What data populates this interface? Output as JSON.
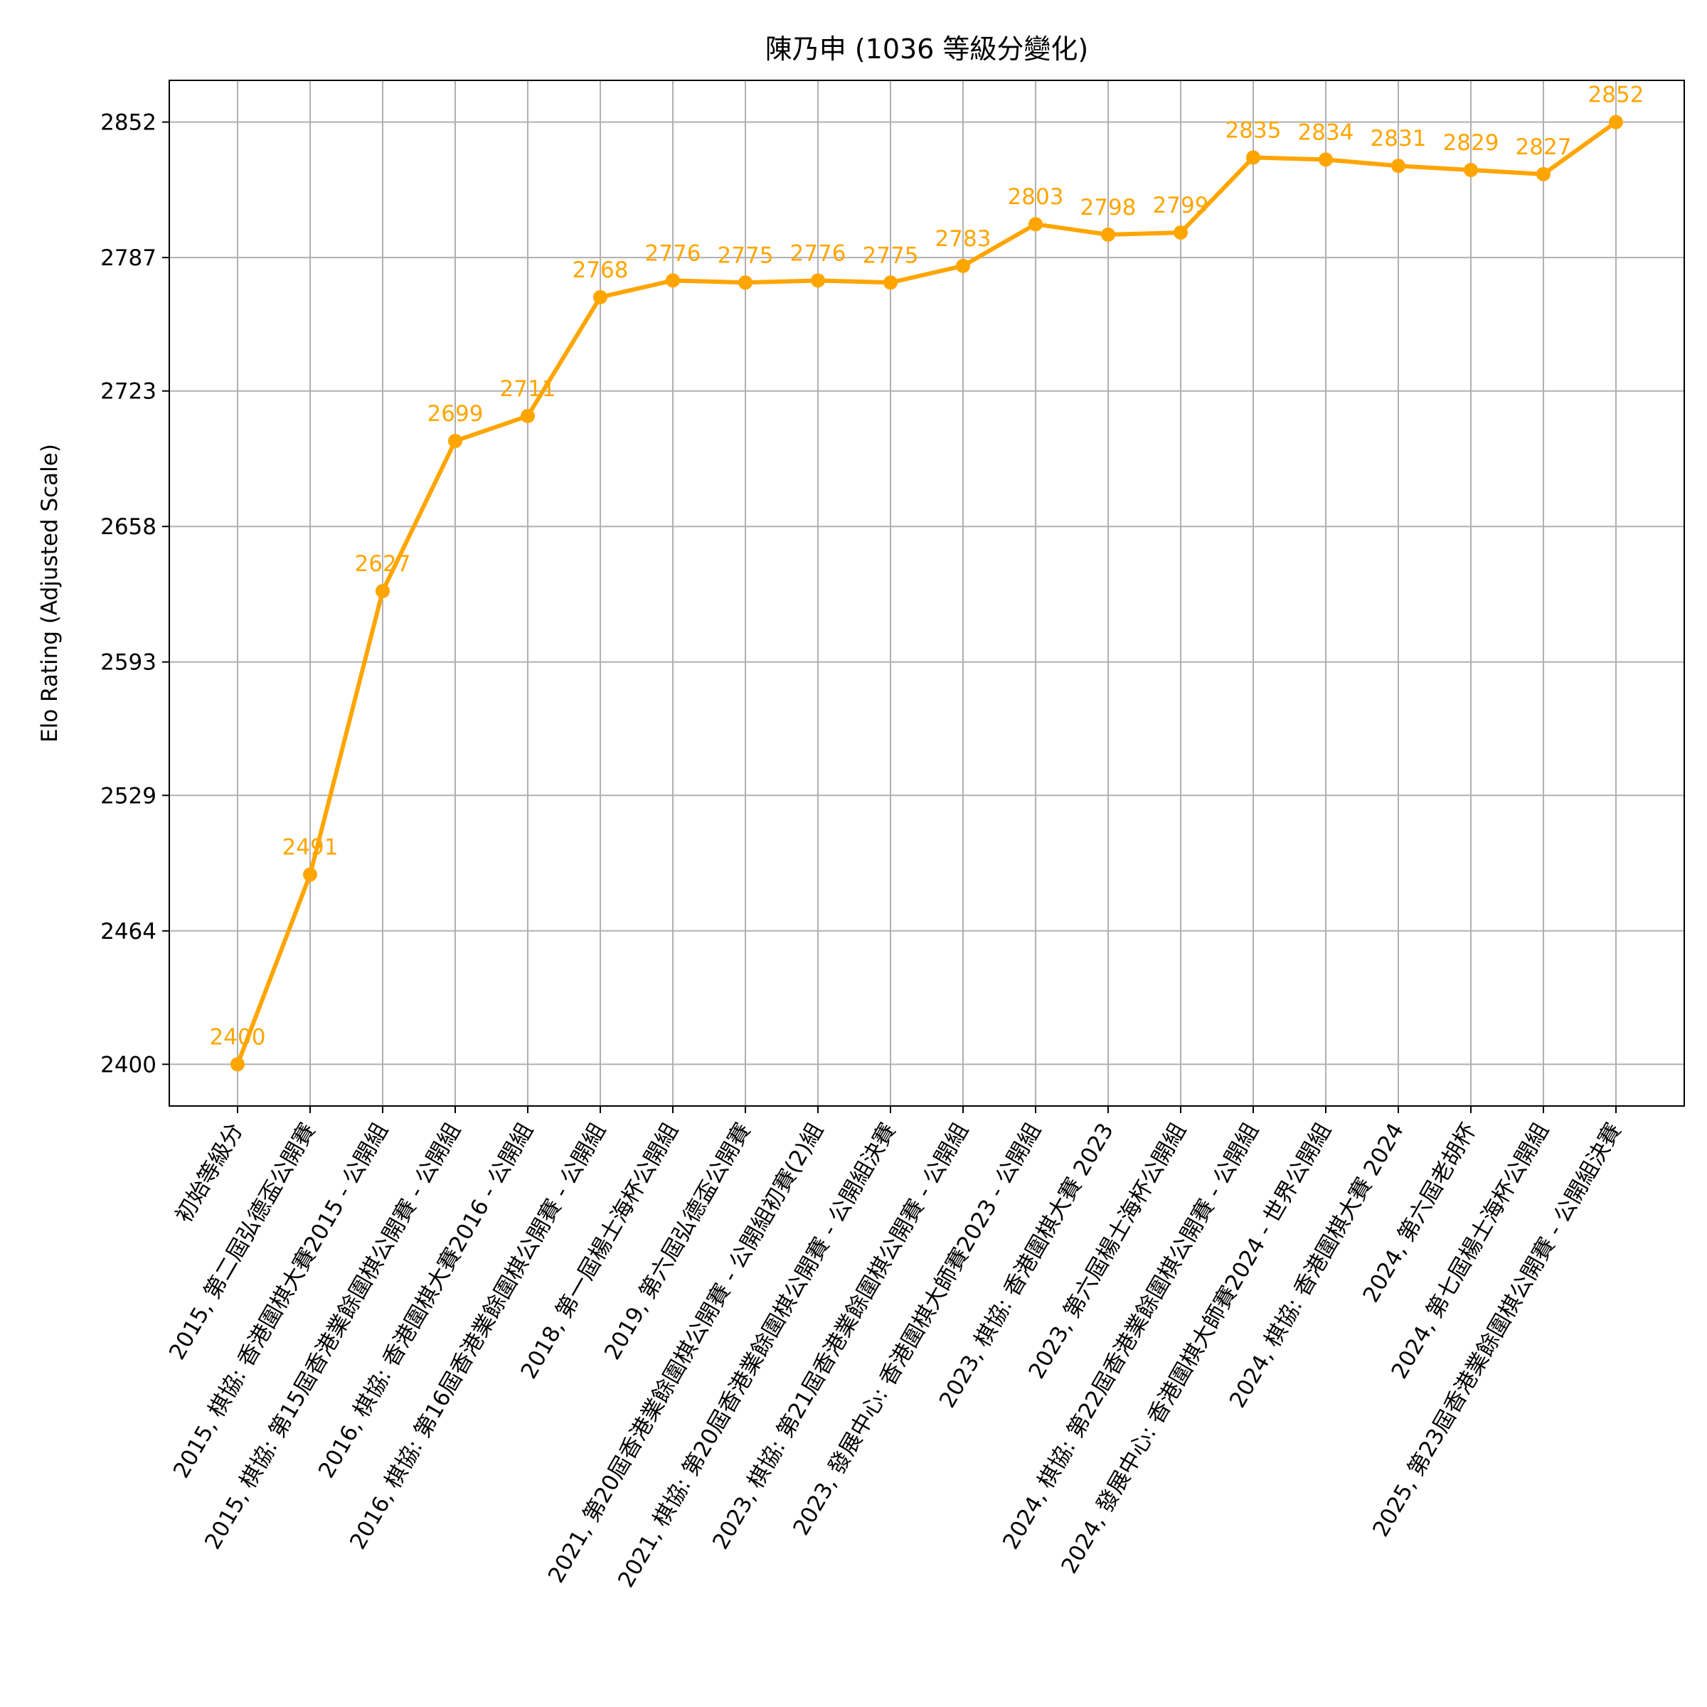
{
  "chart_data": {
    "type": "line",
    "title": "陳乃申 (1036 等級分變化)",
    "xlabel": "",
    "ylabel": "Elo Rating (Adjusted Scale)",
    "ylim": [
      2380,
      2872
    ],
    "yticks": [
      2400,
      2464,
      2529,
      2593,
      2658,
      2723,
      2787,
      2852
    ],
    "grid": true,
    "color": "#FFA500",
    "categories": [
      "初始等級分",
      "2015, 第二屆弘德盃公開賽",
      "2015, 棋協: 香港圍棋大賽2015 - 公開組",
      "2015, 棋協: 第15屆香港業餘圍棋公開賽 - 公開組",
      "2016, 棋協: 香港圍棋大賽2016 - 公開組",
      "2016, 棋協: 第16屆香港業餘圍棋公開賽 - 公開組",
      "2018, 第一屆楊士海杯公開組",
      "2019, 第六屆弘德盃公開賽",
      "2021, 第20屆香港業餘圍棋公開賽 - 公開組初賽(2)組",
      "2021, 棋協: 第20屆香港業餘圍棋公開賽 - 公開組決賽",
      "2023, 棋協: 第21屆香港業餘圍棋公開賽 - 公開組",
      "2023, 發展中心: 香港圍棋大師賽2023 - 公開組",
      "2023, 棋協: 香港圍棋大賽 2023",
      "2023, 第六屆楊士海杯公開組",
      "2024, 棋協: 第22屆香港業餘圍棋公開賽 - 公開組",
      "2024, 發展中心: 香港圍棋大師賽2024 - 世界公開組",
      "2024, 棋協: 香港圍棋大賽 2024",
      "2024, 第六屆老胡杯",
      "2024, 第七屆楊士海杯公開組",
      "2025, 第23屆香港業餘圍棋公開賽 - 公開組決賽"
    ],
    "values": [
      2400,
      2491,
      2627,
      2699,
      2711,
      2768,
      2776,
      2775,
      2776,
      2775,
      2783,
      2803,
      2798,
      2799,
      2835,
      2834,
      2831,
      2829,
      2827,
      2852
    ],
    "value_labels": [
      "2400",
      "2491",
      "2627",
      "2699",
      "2711",
      "2768",
      "2776",
      "2775",
      "2776",
      "2775",
      "2783",
      "2803",
      "2798",
      "2799",
      "2835",
      "2834",
      "2831",
      "2829",
      "2827",
      "2852"
    ]
  }
}
